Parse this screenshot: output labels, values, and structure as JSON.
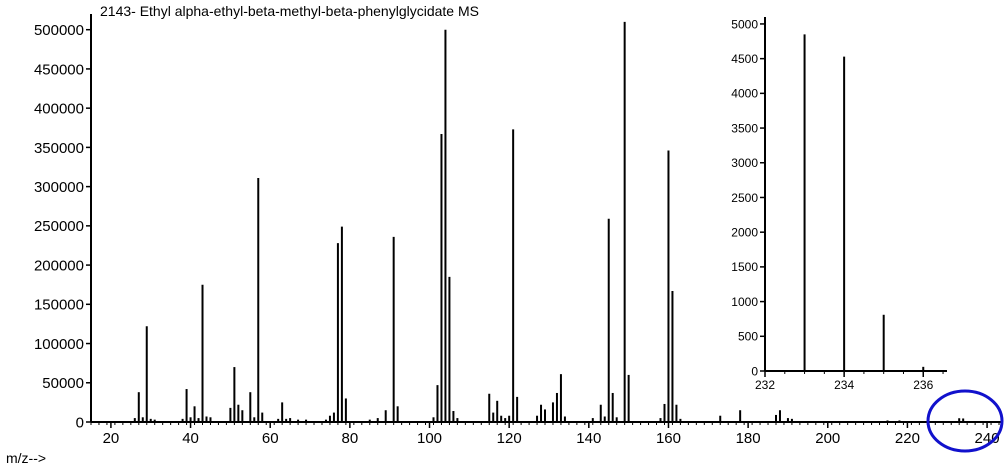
{
  "chart_data": [
    {
      "type": "bar",
      "title": "2143- Ethyl alpha-ethyl-beta-methyl-beta-phenylglycidate MS",
      "xlabel": "m/z-->",
      "ylabel": "",
      "xlim": [
        15,
        244
      ],
      "ylim": [
        0,
        520000
      ],
      "xticks": [
        20,
        40,
        60,
        80,
        100,
        120,
        140,
        160,
        180,
        200,
        220,
        240
      ],
      "yticks": [
        0,
        50000,
        100000,
        150000,
        200000,
        250000,
        300000,
        350000,
        400000,
        450000,
        500000
      ],
      "peaks": [
        [
          26,
          5000
        ],
        [
          27,
          38000
        ],
        [
          28,
          6000
        ],
        [
          29,
          122000
        ],
        [
          30,
          4000
        ],
        [
          31,
          3000
        ],
        [
          38,
          4000
        ],
        [
          39,
          42000
        ],
        [
          40,
          6000
        ],
        [
          41,
          20000
        ],
        [
          42,
          5000
        ],
        [
          43,
          175000
        ],
        [
          44,
          7000
        ],
        [
          45,
          6000
        ],
        [
          50,
          18000
        ],
        [
          51,
          70000
        ],
        [
          52,
          22000
        ],
        [
          53,
          15000
        ],
        [
          55,
          38000
        ],
        [
          56,
          6000
        ],
        [
          57,
          311000
        ],
        [
          58,
          12000
        ],
        [
          62,
          4000
        ],
        [
          63,
          25000
        ],
        [
          64,
          4000
        ],
        [
          65,
          5000
        ],
        [
          67,
          3000
        ],
        [
          69,
          3000
        ],
        [
          74,
          3000
        ],
        [
          75,
          8000
        ],
        [
          76,
          12000
        ],
        [
          77,
          228000
        ],
        [
          78,
          249000
        ],
        [
          79,
          30000
        ],
        [
          85,
          3000
        ],
        [
          87,
          5000
        ],
        [
          89,
          15000
        ],
        [
          91,
          236000
        ],
        [
          92,
          20000
        ],
        [
          101,
          6000
        ],
        [
          102,
          47000
        ],
        [
          103,
          367000
        ],
        [
          104,
          500000
        ],
        [
          105,
          185000
        ],
        [
          106,
          14000
        ],
        [
          107,
          5000
        ],
        [
          115,
          36000
        ],
        [
          116,
          12000
        ],
        [
          117,
          27000
        ],
        [
          118,
          8000
        ],
        [
          119,
          5000
        ],
        [
          120,
          8000
        ],
        [
          121,
          373000
        ],
        [
          122,
          32000
        ],
        [
          127,
          8000
        ],
        [
          128,
          22000
        ],
        [
          129,
          16000
        ],
        [
          131,
          25000
        ],
        [
          132,
          37000
        ],
        [
          133,
          61000
        ],
        [
          134,
          7000
        ],
        [
          141,
          5000
        ],
        [
          143,
          22000
        ],
        [
          144,
          7000
        ],
        [
          145,
          259000
        ],
        [
          146,
          37000
        ],
        [
          147,
          6000
        ],
        [
          149,
          510000
        ],
        [
          150,
          60000
        ],
        [
          158,
          5000
        ],
        [
          159,
          23000
        ],
        [
          160,
          346000
        ],
        [
          161,
          167000
        ],
        [
          162,
          22000
        ],
        [
          163,
          4000
        ],
        [
          173,
          8000
        ],
        [
          178,
          15000
        ],
        [
          187,
          9000
        ],
        [
          188,
          15000
        ],
        [
          190,
          5000
        ],
        [
          191,
          4000
        ],
        [
          215,
          2000
        ],
        [
          218,
          2000
        ],
        [
          233,
          4800
        ],
        [
          234,
          4500
        ],
        [
          235,
          800
        ],
        [
          236,
          60
        ]
      ]
    },
    {
      "type": "bar",
      "title": "",
      "xlim": [
        232,
        236.6
      ],
      "ylim": [
        0,
        5100
      ],
      "xticks": [
        232,
        234,
        236
      ],
      "yticks": [
        0,
        500,
        1000,
        1500,
        2000,
        2500,
        3000,
        3500,
        4000,
        4500,
        5000
      ],
      "peaks": [
        [
          233,
          4850
        ],
        [
          234,
          4530
        ],
        [
          235,
          810
        ],
        [
          236,
          60
        ]
      ]
    }
  ],
  "annotation": {
    "shape": "ellipse",
    "color": "#1111cc"
  }
}
